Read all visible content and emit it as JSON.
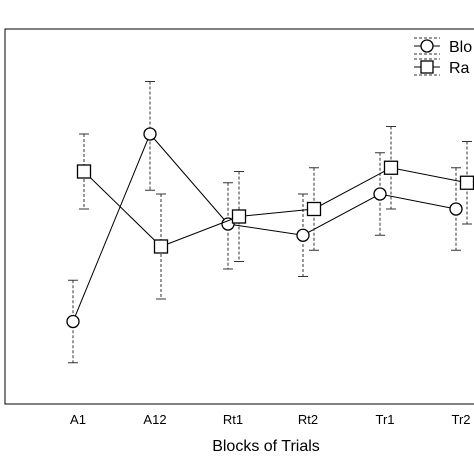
{
  "chart_data": {
    "type": "line",
    "xlabel": "Blocks of Trials",
    "categories": [
      "A1",
      "A12",
      "Rt1",
      "Rt2",
      "Tr1",
      "Tr2"
    ],
    "ylim": [
      0,
      100
    ],
    "grid": false,
    "legend_position": "top-right",
    "series": [
      {
        "name": "Blo",
        "marker": "circle",
        "values": [
          22,
          72,
          48,
          45,
          56,
          52
        ],
        "err_low": [
          11,
          57,
          36,
          34,
          45,
          41
        ],
        "err_high": [
          33,
          86,
          59,
          56,
          67,
          63
        ]
      },
      {
        "name": "Ra",
        "marker": "square",
        "values": [
          62,
          42,
          50,
          52,
          63,
          59
        ],
        "err_low": [
          52,
          28,
          38,
          41,
          52,
          48
        ],
        "err_high": [
          72,
          56,
          62,
          63,
          74,
          70
        ]
      }
    ]
  }
}
